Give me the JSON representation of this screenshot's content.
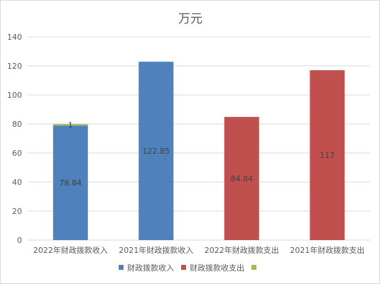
{
  "chart_data": {
    "type": "bar",
    "stacked": true,
    "title": "万元",
    "categories": [
      "2022年财政拨款收入",
      "2021年财政拨款收入",
      "2022年财政拨款支出",
      "2021年财政拨款支出"
    ],
    "series": [
      {
        "name": "财政拨款收入",
        "color": "#4F81BD",
        "values": [
          78.84,
          122.85,
          null,
          null
        ]
      },
      {
        "name": "财政拨款收支出",
        "color": "#C0504D",
        "values": [
          null,
          null,
          84.84,
          117
        ]
      },
      {
        "name": "",
        "color": "#9BBB59",
        "values": [
          1,
          null,
          null,
          null
        ]
      }
    ],
    "ylim": [
      0,
      140
    ],
    "yticks": [
      0,
      20,
      40,
      60,
      80,
      100,
      120,
      140
    ],
    "grid": true,
    "legend": "bottom"
  }
}
